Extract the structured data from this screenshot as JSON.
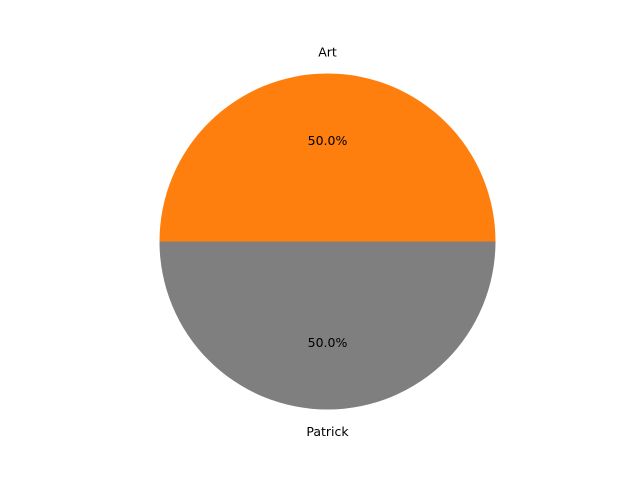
{
  "chart_data": {
    "type": "pie",
    "title": "",
    "labels": [
      "Art",
      "Patrick"
    ],
    "values": [
      50.0,
      50.0
    ],
    "percent_labels": [
      "50.0%",
      "50.0%"
    ],
    "colors": [
      "#ff7f0e",
      "#7f7f7f"
    ],
    "start_angle_deg": 0,
    "direction": "counterclockwise",
    "legend": "none"
  }
}
